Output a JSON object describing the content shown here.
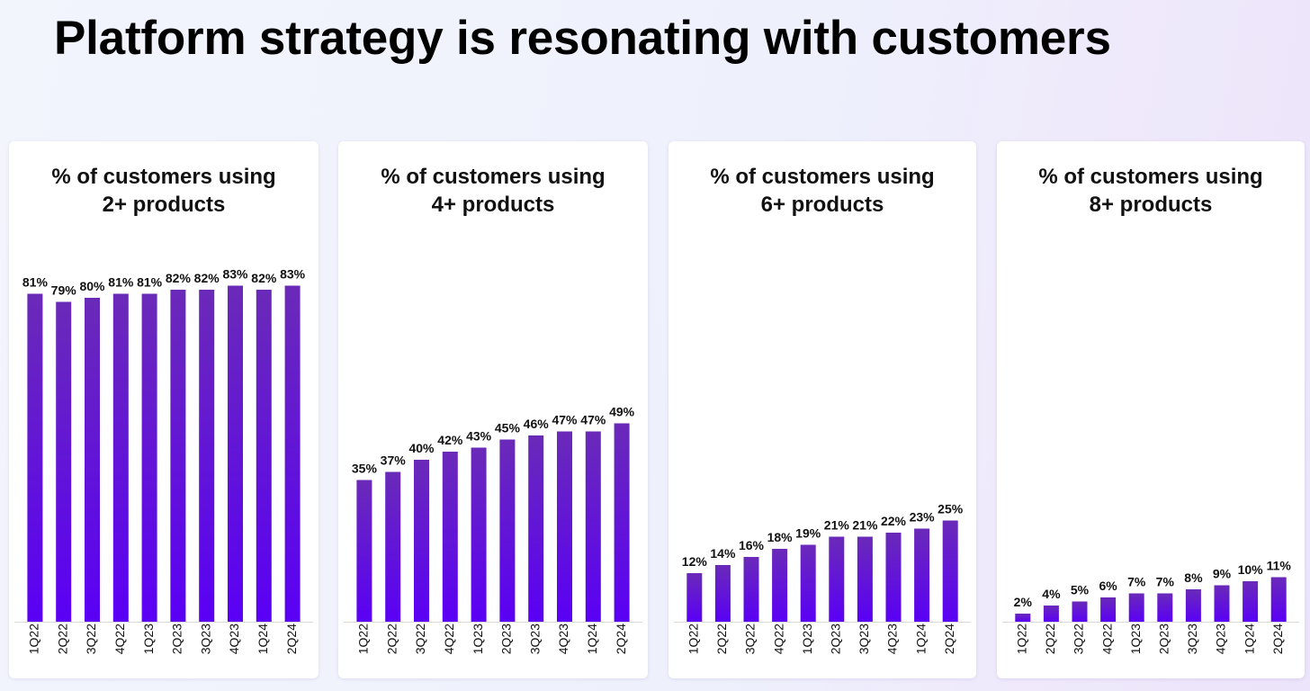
{
  "title": "Platform strategy is resonating with customers",
  "colors": {
    "bar_top": "#6a2ab8",
    "bar_bottom": "#5a00f5",
    "baseline": "#d9d9d9",
    "label": "#111111"
  },
  "chart_data": [
    {
      "type": "bar",
      "title_lines": [
        "% of customers using",
        "2+ products"
      ],
      "categories": [
        "1Q22",
        "2Q22",
        "3Q22",
        "4Q22",
        "1Q23",
        "2Q23",
        "3Q23",
        "4Q23",
        "1Q24",
        "2Q24"
      ],
      "values": [
        81,
        79,
        80,
        81,
        81,
        82,
        82,
        83,
        82,
        83
      ],
      "value_labels": [
        "81%",
        "79%",
        "80%",
        "81%",
        "81%",
        "82%",
        "82%",
        "83%",
        "82%",
        "83%"
      ],
      "ylim": [
        0,
        100
      ]
    },
    {
      "type": "bar",
      "title_lines": [
        "% of customers using",
        "4+ products"
      ],
      "categories": [
        "1Q22",
        "2Q22",
        "3Q22",
        "4Q22",
        "1Q23",
        "2Q23",
        "3Q23",
        "4Q23",
        "1Q24",
        "2Q24"
      ],
      "values": [
        35,
        37,
        40,
        42,
        43,
        45,
        46,
        47,
        47,
        49
      ],
      "value_labels": [
        "35%",
        "37%",
        "40%",
        "42%",
        "43%",
        "45%",
        "46%",
        "47%",
        "47%",
        "49%"
      ],
      "ylim": [
        0,
        100
      ]
    },
    {
      "type": "bar",
      "title_lines": [
        "% of customers using",
        "6+ products"
      ],
      "categories": [
        "1Q22",
        "2Q22",
        "3Q22",
        "4Q22",
        "1Q23",
        "2Q23",
        "3Q23",
        "4Q23",
        "1Q24",
        "2Q24"
      ],
      "values": [
        12,
        14,
        16,
        18,
        19,
        21,
        21,
        22,
        23,
        25
      ],
      "value_labels": [
        "12%",
        "14%",
        "16%",
        "18%",
        "19%",
        "21%",
        "21%",
        "22%",
        "23%",
        "25%"
      ],
      "ylim": [
        0,
        100
      ]
    },
    {
      "type": "bar",
      "title_lines": [
        "% of customers using",
        "8+ products"
      ],
      "categories": [
        "1Q22",
        "2Q22",
        "3Q22",
        "4Q22",
        "1Q23",
        "2Q23",
        "3Q23",
        "4Q23",
        "1Q24",
        "2Q24"
      ],
      "values": [
        2,
        4,
        5,
        6,
        7,
        7,
        8,
        9,
        10,
        11
      ],
      "value_labels": [
        "2%",
        "4%",
        "5%",
        "6%",
        "7%",
        "7%",
        "8%",
        "9%",
        "10%",
        "11%"
      ],
      "ylim": [
        0,
        100
      ]
    }
  ]
}
